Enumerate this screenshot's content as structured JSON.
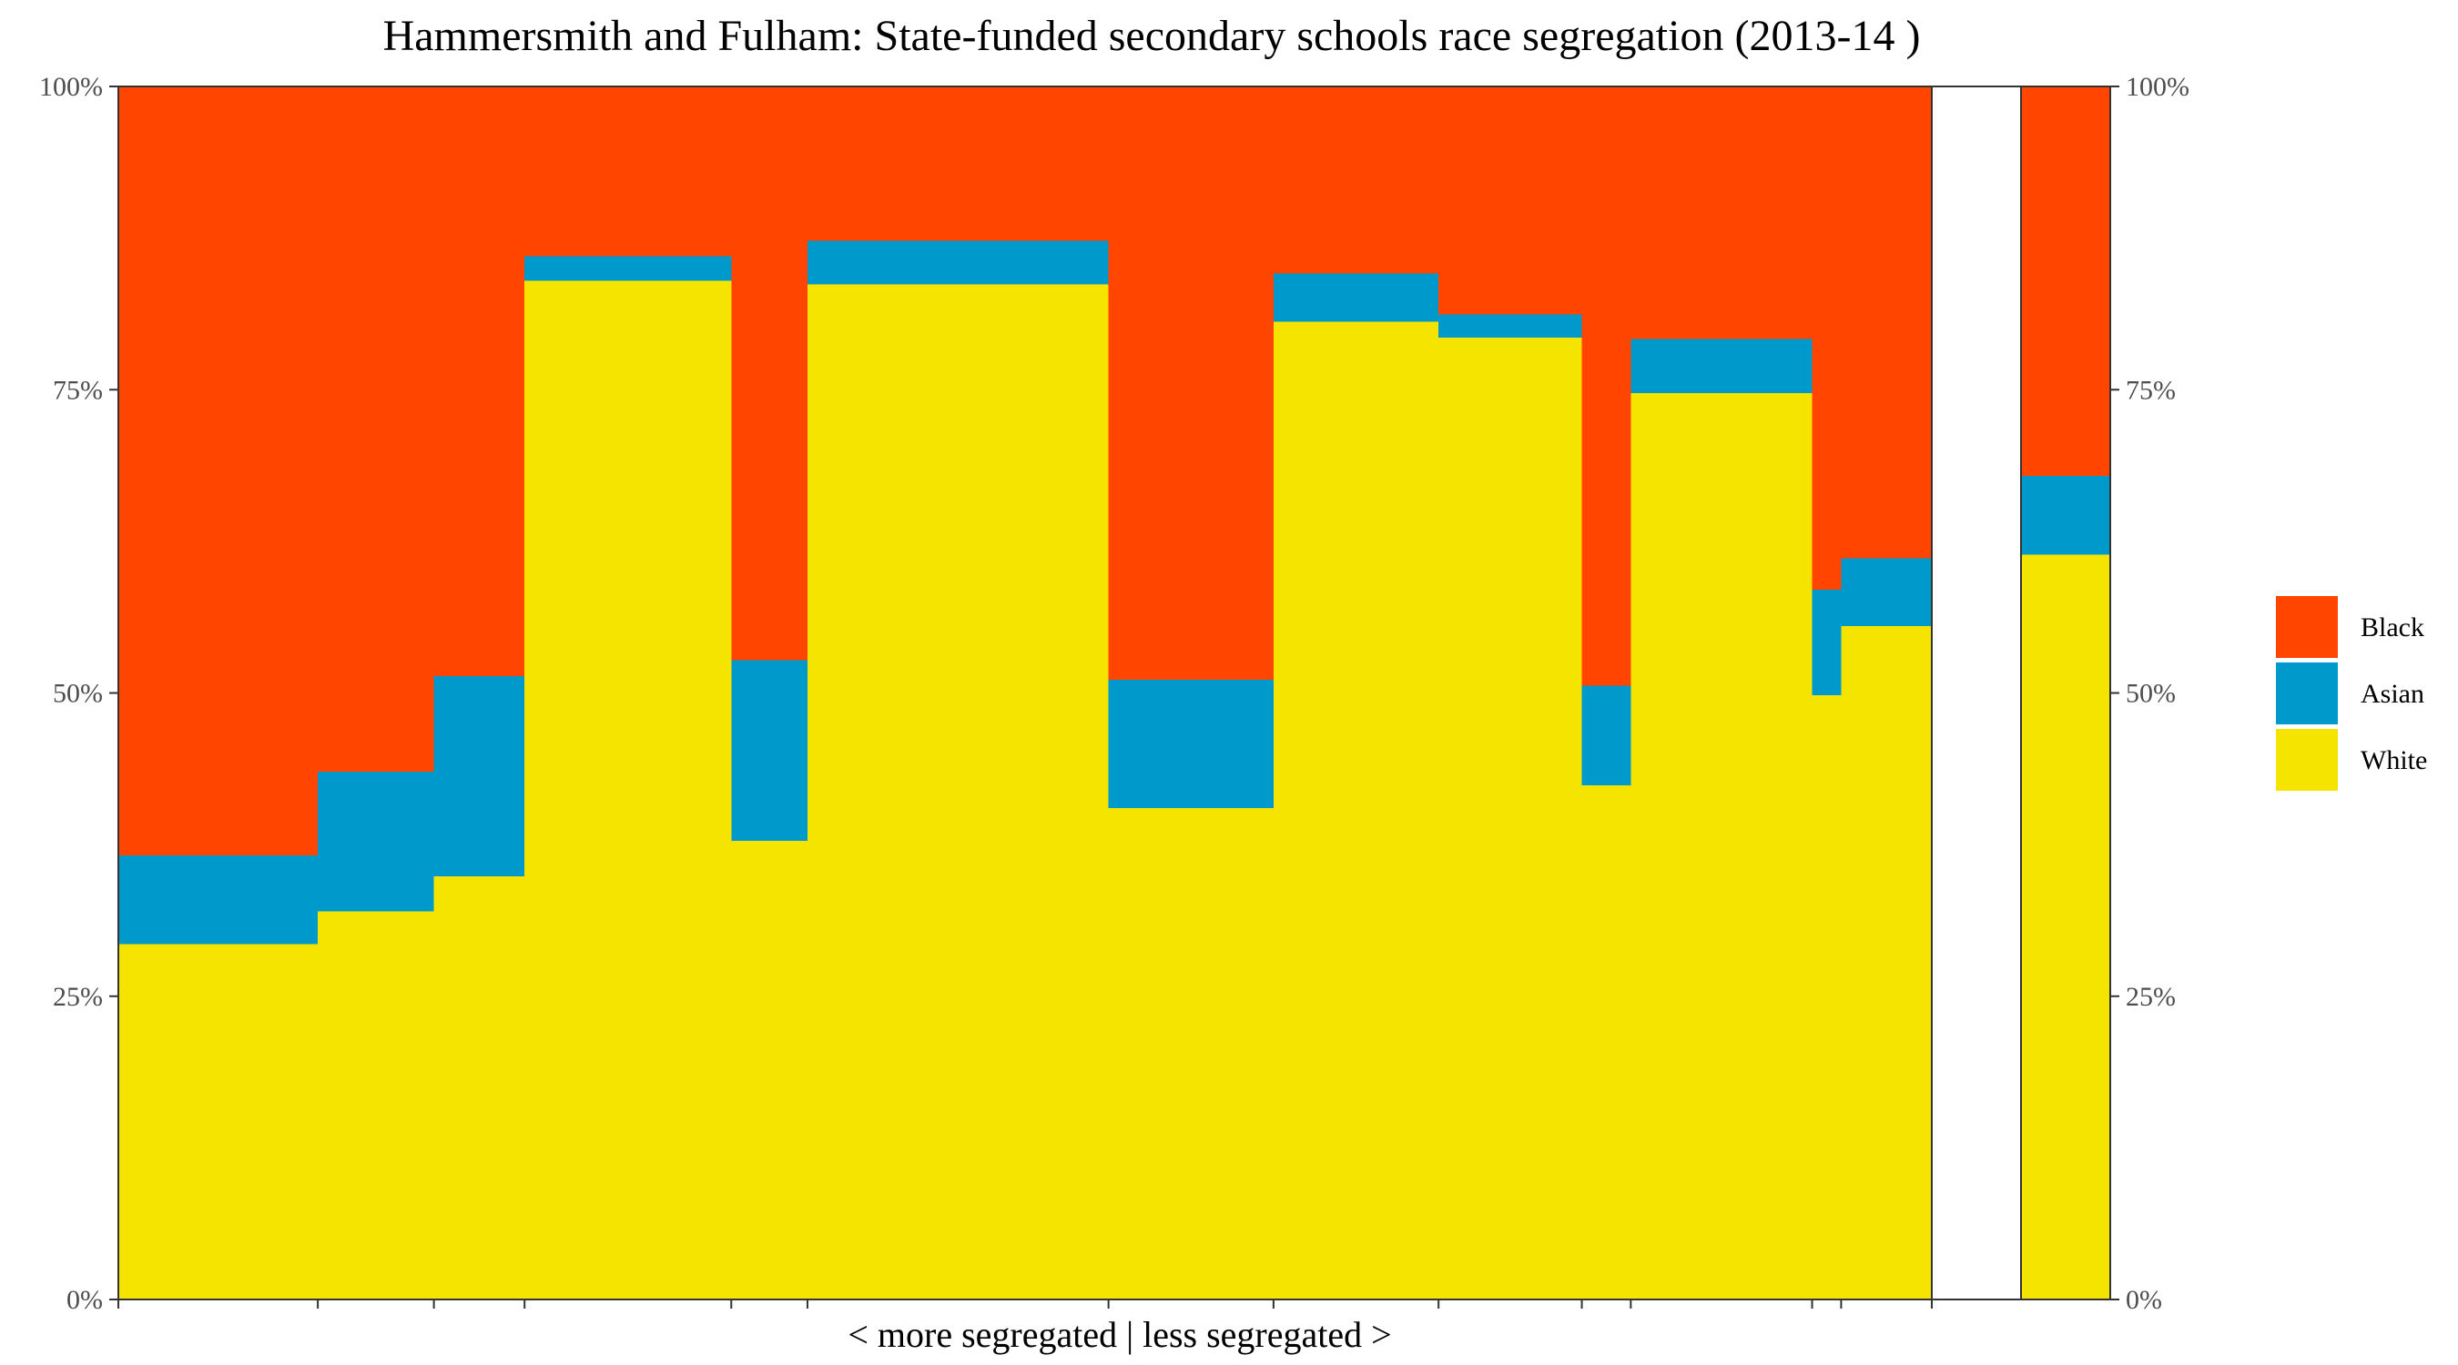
{
  "chart_data": {
    "type": "bar",
    "title": "Hammersmith and Fulham: State-funded secondary schools race segregation (2013-14 )",
    "xlabel": "< more segregated | less segregated >",
    "ylabel": "",
    "ylim": [
      0,
      1
    ],
    "y_ticks": [
      "0%",
      "25%",
      "50%",
      "75%",
      "100%"
    ],
    "grid": false,
    "legend_position": "right",
    "series": [
      {
        "name": "Black",
        "color": "#ff4500"
      },
      {
        "name": "Asian",
        "color": "#0099cc"
      },
      {
        "name": "White",
        "color": "#f5e400"
      }
    ],
    "schools": [
      {
        "relative_width": 1.1,
        "white": 0.293,
        "asian": 0.073
      },
      {
        "relative_width": 0.64,
        "white": 0.32,
        "asian": 0.115
      },
      {
        "relative_width": 0.5,
        "white": 0.349,
        "asian": 0.165
      },
      {
        "relative_width": 1.14,
        "white": 0.84,
        "asian": 0.02
      },
      {
        "relative_width": 0.42,
        "white": 0.378,
        "asian": 0.149
      },
      {
        "relative_width": 1.66,
        "white": 0.837,
        "asian": 0.036
      },
      {
        "relative_width": 0.91,
        "white": 0.405,
        "asian": 0.106
      },
      {
        "relative_width": 0.91,
        "white": 0.806,
        "asian": 0.04
      },
      {
        "relative_width": 0.79,
        "white": 0.793,
        "asian": 0.019
      },
      {
        "relative_width": 0.27,
        "white": 0.424,
        "asian": 0.082
      },
      {
        "relative_width": 1.0,
        "white": 0.747,
        "asian": 0.045
      },
      {
        "relative_width": 0.16,
        "white": 0.498,
        "asian": 0.087
      },
      {
        "relative_width": 0.5,
        "white": 0.555,
        "asian": 0.056
      }
    ],
    "total": {
      "white": 0.614,
      "asian": 0.065
    }
  }
}
